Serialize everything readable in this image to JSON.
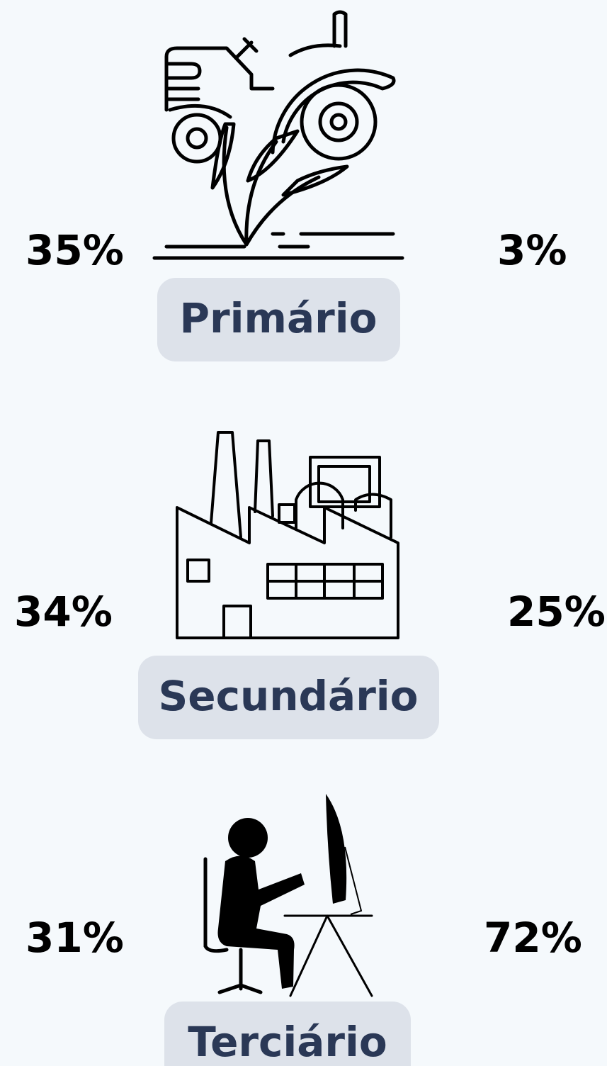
{
  "sectors": [
    {
      "label": "Primário",
      "left": "35%",
      "right": "3%"
    },
    {
      "label": "Secundário",
      "left": "34%",
      "right": "25%"
    },
    {
      "label": "Terciário",
      "left": "31%",
      "right": "72%"
    }
  ]
}
